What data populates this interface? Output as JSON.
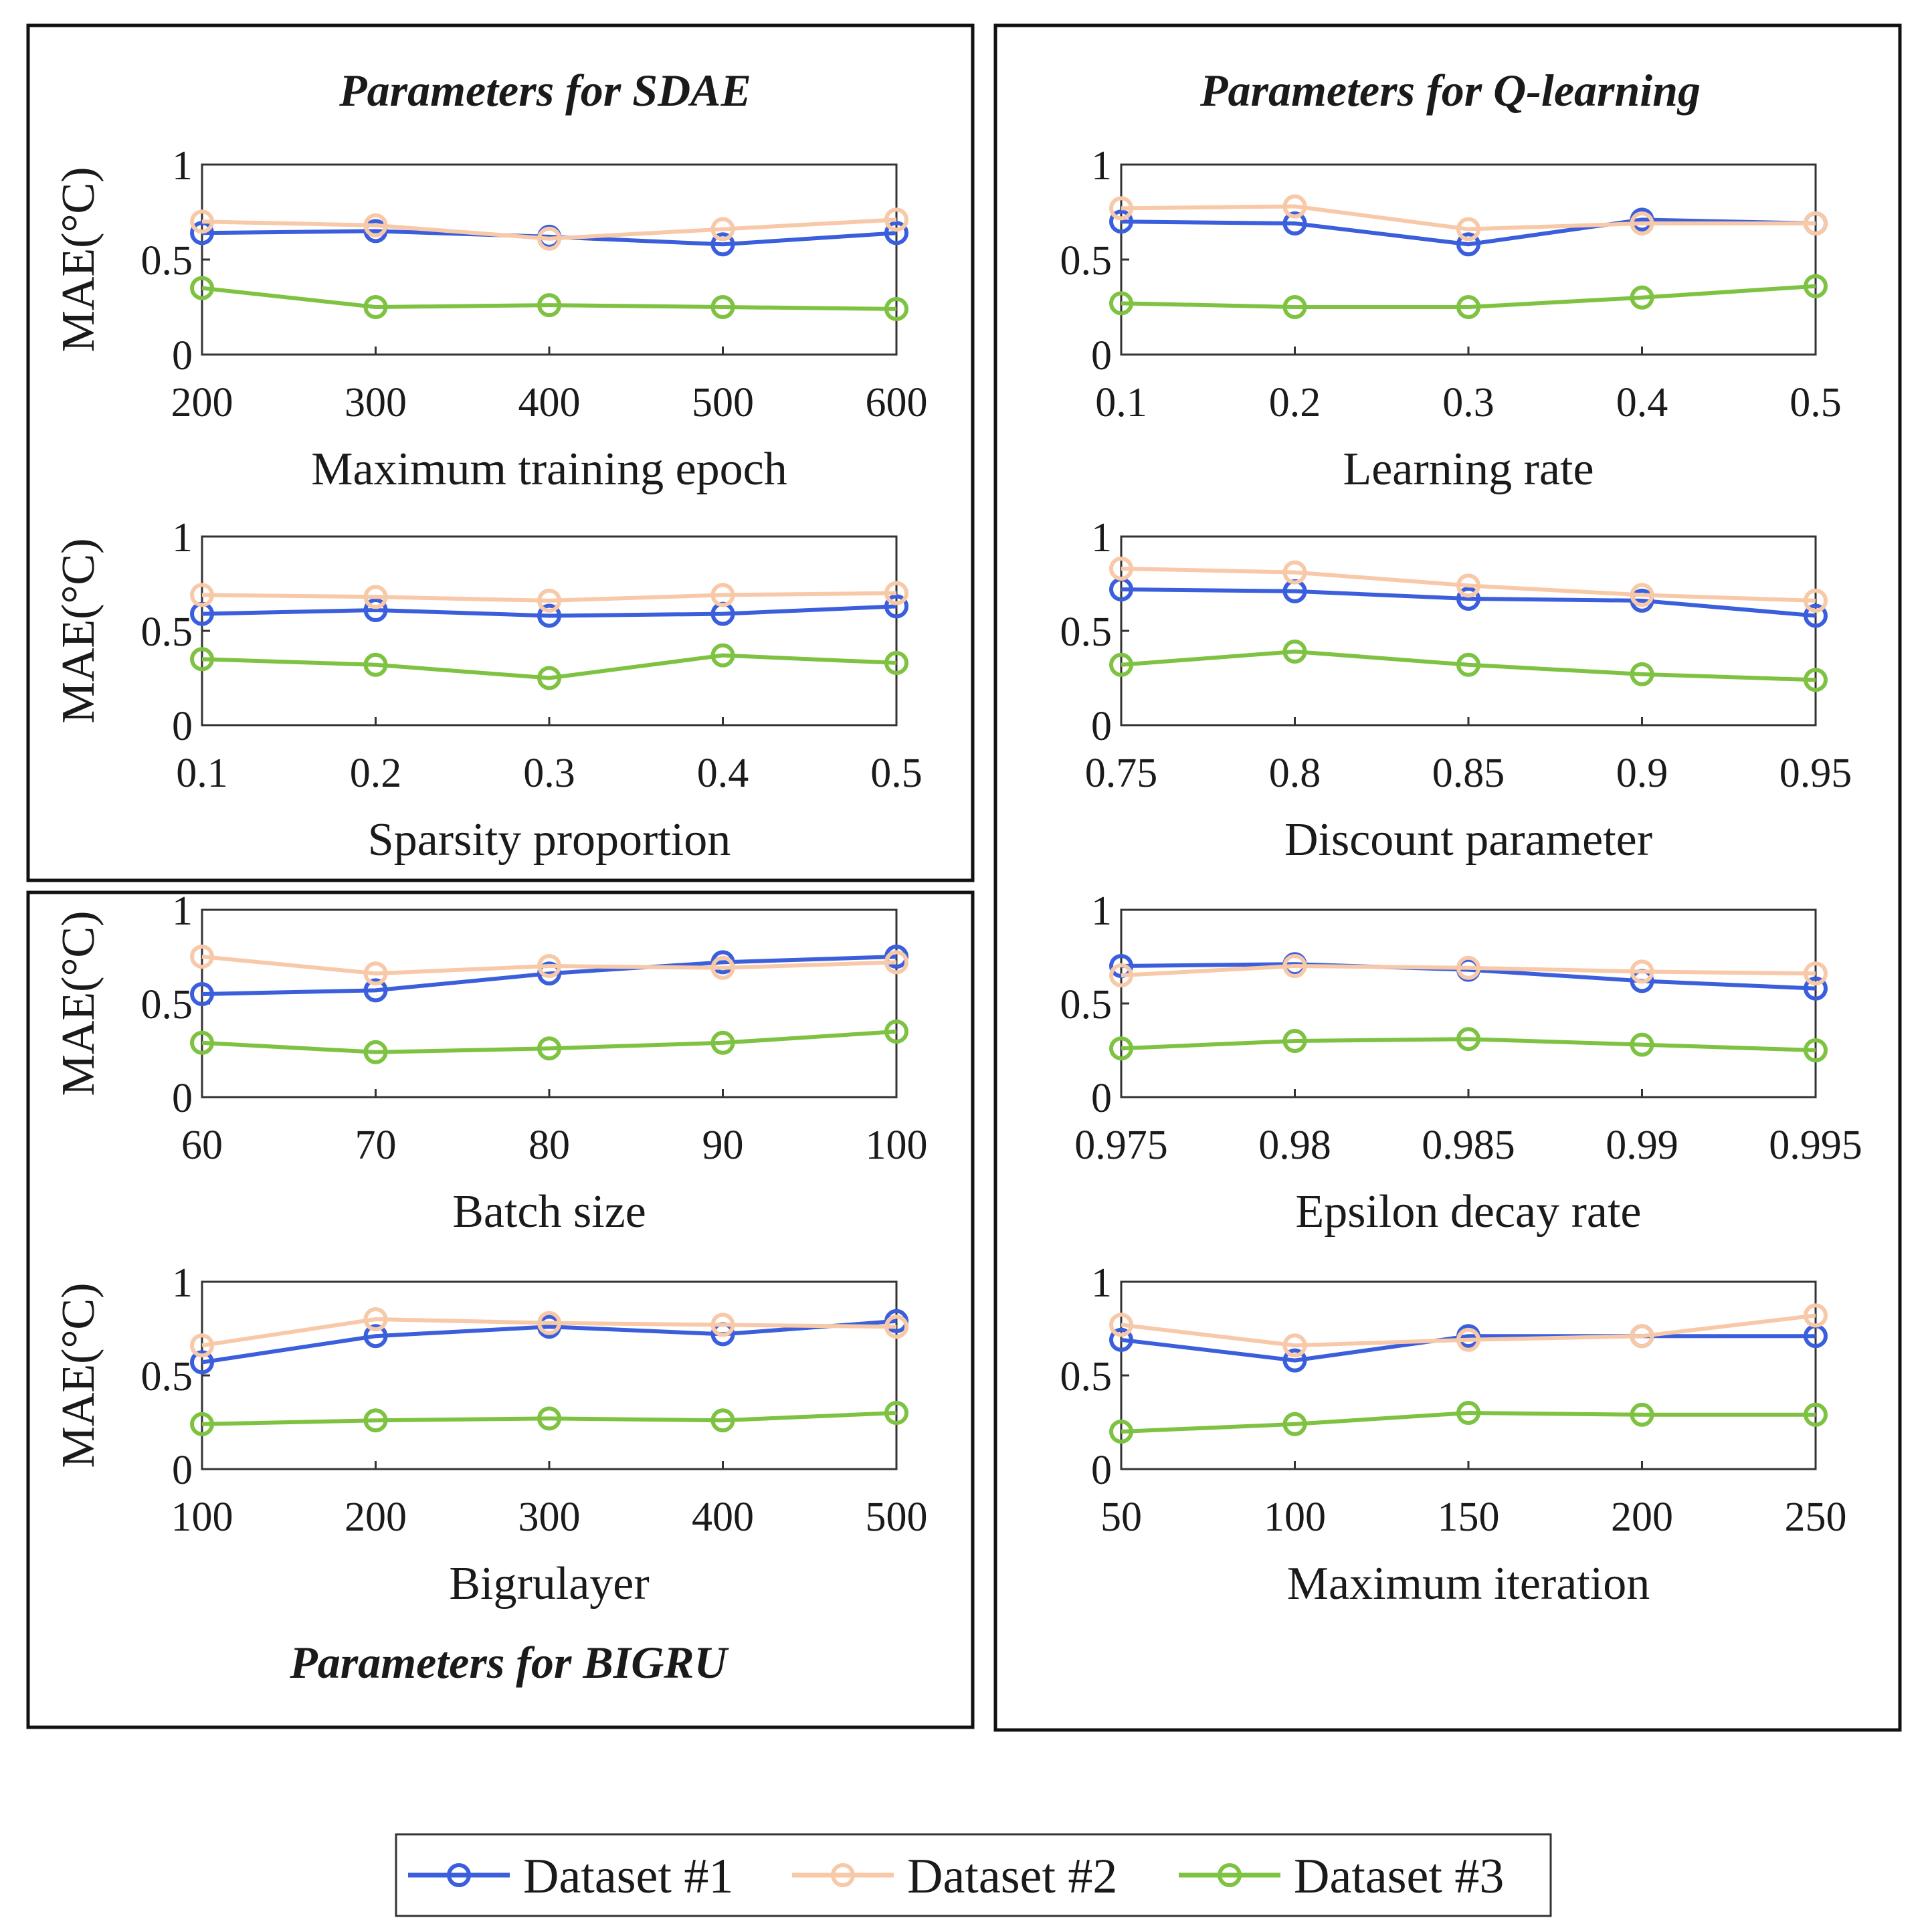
{
  "chart_data": {
    "type": "line",
    "colors": {
      "dataset1": "#3b5fdc",
      "dataset2": "#f7c9a8",
      "dataset3": "#7ec242"
    },
    "legend": {
      "position": "bottom",
      "entries": [
        "Dataset #1",
        "Dataset #2",
        "Dataset #3"
      ]
    },
    "group_titles": {
      "sdae": "Parameters for SDAE",
      "qlearning": "Parameters for Q-learning",
      "bigru": "Parameters for BIGRU"
    },
    "ylabel": "MAE(°C)",
    "ylim": [
      0,
      1
    ],
    "yticks": [
      "0",
      "0.5",
      "1"
    ],
    "panels": [
      {
        "group": "sdae",
        "xlabel": "Maximum training epoch",
        "categories": [
          "200",
          "300",
          "400",
          "500",
          "600"
        ],
        "series": [
          {
            "name": "Dataset #1",
            "values": [
              0.64,
              0.65,
              0.62,
              0.58,
              0.64
            ]
          },
          {
            "name": "Dataset #2",
            "values": [
              0.7,
              0.68,
              0.61,
              0.66,
              0.71
            ]
          },
          {
            "name": "Dataset #3",
            "values": [
              0.35,
              0.25,
              0.26,
              0.25,
              0.24
            ]
          }
        ]
      },
      {
        "group": "sdae",
        "xlabel": "Sparsity proportion",
        "categories": [
          "0.1",
          "0.2",
          "0.3",
          "0.4",
          "0.5"
        ],
        "series": [
          {
            "name": "Dataset #1",
            "values": [
              0.59,
              0.61,
              0.58,
              0.59,
              0.63
            ]
          },
          {
            "name": "Dataset #2",
            "values": [
              0.69,
              0.68,
              0.66,
              0.69,
              0.7
            ]
          },
          {
            "name": "Dataset #3",
            "values": [
              0.35,
              0.32,
              0.25,
              0.37,
              0.33
            ]
          }
        ]
      },
      {
        "group": "bigru",
        "xlabel": "Batch size",
        "categories": [
          "60",
          "70",
          "80",
          "90",
          "100"
        ],
        "series": [
          {
            "name": "Dataset #1",
            "values": [
              0.55,
              0.57,
              0.66,
              0.72,
              0.75
            ]
          },
          {
            "name": "Dataset #2",
            "values": [
              0.75,
              0.66,
              0.7,
              0.69,
              0.72
            ]
          },
          {
            "name": "Dataset #3",
            "values": [
              0.29,
              0.24,
              0.26,
              0.29,
              0.35
            ]
          }
        ]
      },
      {
        "group": "bigru",
        "xlabel": "Bigrulayer",
        "categories": [
          "100",
          "200",
          "300",
          "400",
          "500"
        ],
        "series": [
          {
            "name": "Dataset #1",
            "values": [
              0.57,
              0.71,
              0.76,
              0.72,
              0.79
            ]
          },
          {
            "name": "Dataset #2",
            "values": [
              0.66,
              0.8,
              0.78,
              0.77,
              0.76
            ]
          },
          {
            "name": "Dataset #3",
            "values": [
              0.24,
              0.26,
              0.27,
              0.26,
              0.3
            ]
          }
        ]
      },
      {
        "group": "qlearning",
        "xlabel": "Learning rate",
        "categories": [
          "0.1",
          "0.2",
          "0.3",
          "0.4",
          "0.5"
        ],
        "series": [
          {
            "name": "Dataset #1",
            "values": [
              0.7,
              0.69,
              0.58,
              0.71,
              0.69
            ]
          },
          {
            "name": "Dataset #2",
            "values": [
              0.77,
              0.78,
              0.66,
              0.69,
              0.69
            ]
          },
          {
            "name": "Dataset #3",
            "values": [
              0.27,
              0.25,
              0.25,
              0.3,
              0.36
            ]
          }
        ]
      },
      {
        "group": "qlearning",
        "xlabel": "Discount parameter",
        "categories": [
          "0.75",
          "0.8",
          "0.85",
          "0.9",
          "0.95"
        ],
        "series": [
          {
            "name": "Dataset #1",
            "values": [
              0.72,
              0.71,
              0.67,
              0.66,
              0.58
            ]
          },
          {
            "name": "Dataset #2",
            "values": [
              0.83,
              0.81,
              0.74,
              0.69,
              0.66
            ]
          },
          {
            "name": "Dataset #3",
            "values": [
              0.32,
              0.39,
              0.32,
              0.27,
              0.24
            ]
          }
        ]
      },
      {
        "group": "qlearning",
        "xlabel": "Epsilon decay rate",
        "categories": [
          "0.975",
          "0.98",
          "0.985",
          "0.99",
          "0.995"
        ],
        "series": [
          {
            "name": "Dataset #1",
            "values": [
              0.7,
              0.71,
              0.68,
              0.62,
              0.58
            ]
          },
          {
            "name": "Dataset #2",
            "values": [
              0.65,
              0.7,
              0.69,
              0.67,
              0.66
            ]
          },
          {
            "name": "Dataset #3",
            "values": [
              0.26,
              0.3,
              0.31,
              0.28,
              0.25
            ]
          }
        ]
      },
      {
        "group": "qlearning",
        "xlabel": "Maximum iteration",
        "categories": [
          "50",
          "100",
          "150",
          "200",
          "250"
        ],
        "series": [
          {
            "name": "Dataset #1",
            "values": [
              0.69,
              0.58,
              0.71,
              0.71,
              0.71
            ]
          },
          {
            "name": "Dataset #2",
            "values": [
              0.77,
              0.66,
              0.69,
              0.71,
              0.82
            ]
          },
          {
            "name": "Dataset #3",
            "values": [
              0.2,
              0.24,
              0.3,
              0.29,
              0.29
            ]
          }
        ]
      }
    ]
  }
}
